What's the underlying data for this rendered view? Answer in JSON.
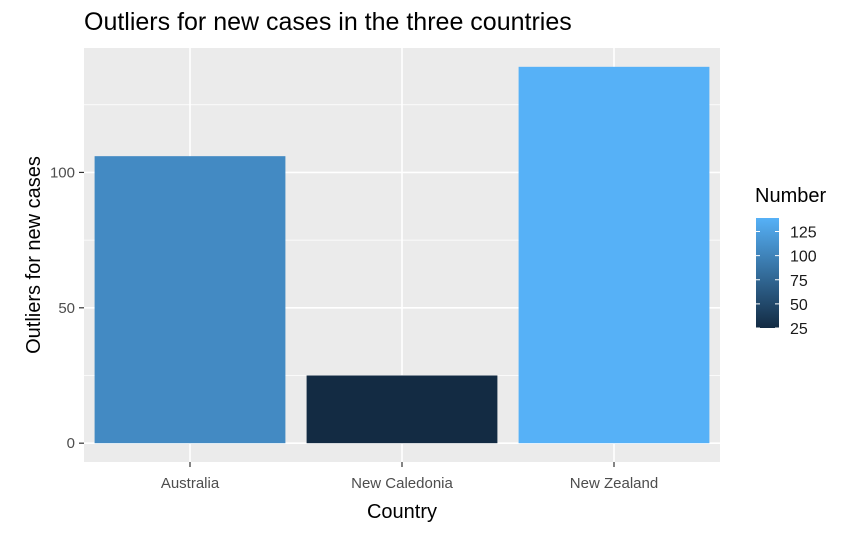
{
  "chart_data": {
    "type": "bar",
    "title": "Outliers for new cases in the three countries",
    "xlabel": "Country",
    "ylabel": "Outliers for new cases",
    "categories": [
      "Australia",
      "New Caledonia",
      "New Zealand"
    ],
    "values": [
      106,
      25,
      139
    ],
    "ylim": [
      -6.95,
      145.95
    ],
    "yticks": [
      0,
      50,
      100
    ],
    "ytick_labels": [
      "0",
      "50",
      "100"
    ],
    "grid": true,
    "legend": {
      "title": "Number",
      "position": "right",
      "ticks": [
        25,
        50,
        75,
        100,
        125
      ],
      "tick_labels": [
        "25",
        "50",
        "75",
        "100",
        "125"
      ],
      "range": [
        25,
        139
      ],
      "color_low": "#132B43",
      "color_high": "#56B1F7"
    },
    "colors": {
      "panel_background": "#EBEBEB",
      "grid_major": "#FFFFFF",
      "grid_minor": "#F5F5F5"
    }
  }
}
